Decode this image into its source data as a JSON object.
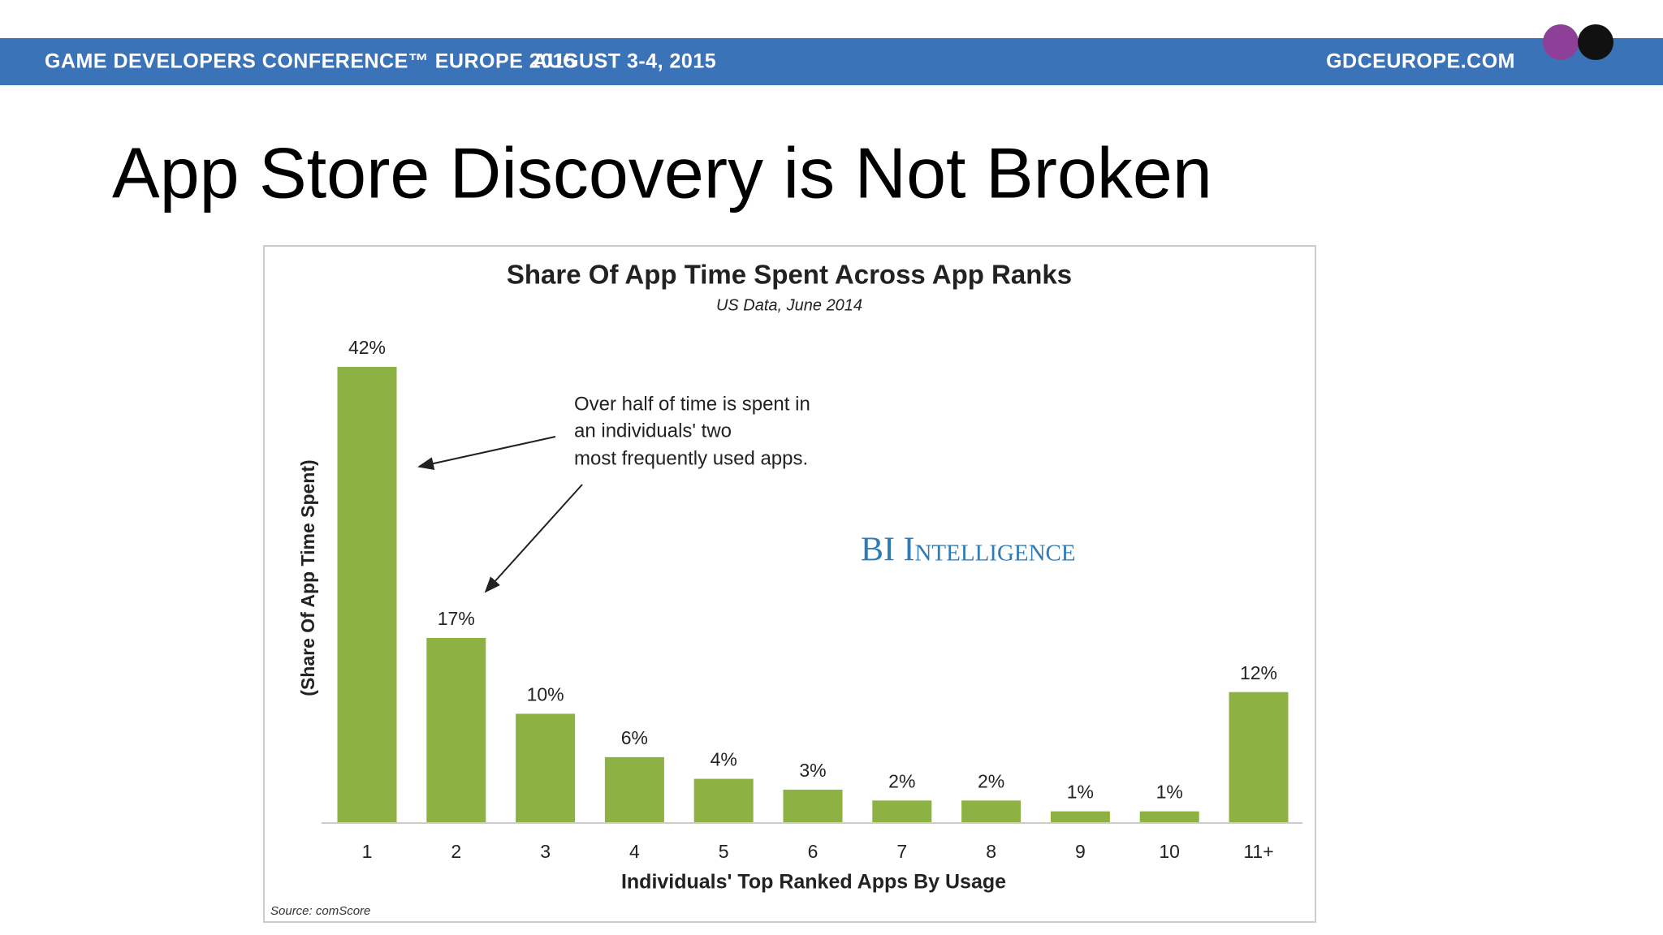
{
  "header": {
    "conference": "GAME DEVELOPERS CONFERENCE™ EUROPE 2015",
    "dates": "AUGUST 3-4, 2015",
    "website": "GDCEUROPE.COM"
  },
  "slide_title": "App Store Discovery is Not Broken",
  "chart_data": {
    "type": "bar",
    "title": "Share Of App Time Spent Across App Ranks",
    "subtitle": "US Data, June 2014",
    "categories": [
      "1",
      "2",
      "3",
      "4",
      "5",
      "6",
      "7",
      "8",
      "9",
      "10",
      "11+"
    ],
    "values": [
      42,
      17,
      10,
      6,
      4,
      3,
      2,
      2,
      1,
      1,
      12
    ],
    "value_labels": [
      "42%",
      "17%",
      "10%",
      "6%",
      "4%",
      "3%",
      "2%",
      "2%",
      "1%",
      "1%",
      "12%"
    ],
    "color": "#8db142",
    "x_label": "Individuals' Top Ranked Apps By Usage",
    "y_label": "(Share Of App Time Spent)",
    "annotation": [
      "Over half of time is spent in",
      "an individuals' two",
      "most frequently used apps."
    ],
    "watermark": "BI Intelligence",
    "source": "Source: comScore"
  }
}
